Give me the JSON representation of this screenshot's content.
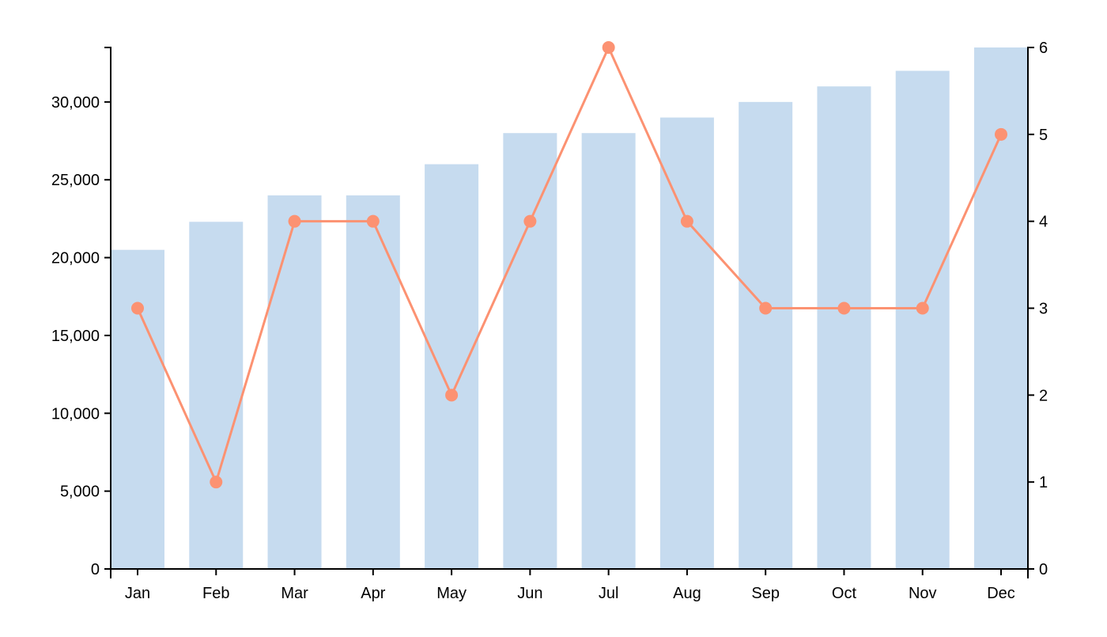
{
  "chart_data": {
    "type": "bar+line",
    "title": "",
    "xlabel": "",
    "ylabel": "",
    "categories": [
      "Jan",
      "Feb",
      "Mar",
      "Apr",
      "May",
      "Jun",
      "Jul",
      "Aug",
      "Sep",
      "Oct",
      "Nov",
      "Dec"
    ],
    "series": [
      {
        "type": "bar",
        "axis": "left",
        "color": "#c6dbef",
        "values": [
          20500,
          22300,
          24000,
          24000,
          26000,
          28000,
          28000,
          29000,
          30000,
          31000,
          32000,
          33500
        ]
      },
      {
        "type": "line",
        "axis": "right",
        "color": "#fc9272",
        "values": [
          3,
          1,
          4,
          4,
          2,
          4,
          6,
          4,
          3,
          3,
          3,
          5
        ]
      }
    ],
    "y_left": {
      "range": [
        0,
        33500
      ],
      "ticks": [
        "0",
        "5,000",
        "10,000",
        "15,000",
        "20,000",
        "25,000",
        "30,000"
      ],
      "tick_values": [
        0,
        5000,
        10000,
        15000,
        20000,
        25000,
        30000
      ]
    },
    "y_right": {
      "range": [
        0,
        6
      ],
      "ticks": [
        "0",
        "1",
        "2",
        "3",
        "4",
        "5",
        "6"
      ],
      "tick_values": [
        0,
        1,
        2,
        3,
        4,
        5,
        6
      ]
    },
    "grid": false,
    "legend": "none"
  }
}
